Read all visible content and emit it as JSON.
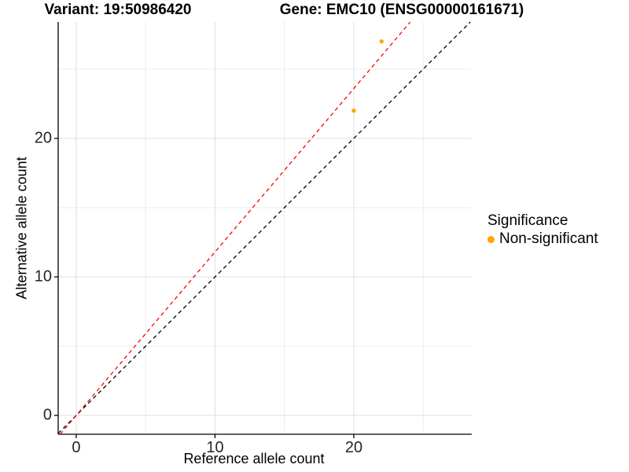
{
  "chart_data": {
    "type": "scatter",
    "title_left": "Variant: 19:50986420",
    "title_right": "Gene: EMC10 (ENSG00000161671)",
    "xlabel": "Reference allele count",
    "ylabel": "Alternative allele count",
    "xlim": [
      -1.3,
      28.5
    ],
    "ylim": [
      -1.36,
      28.4
    ],
    "x_ticks": [
      0,
      10,
      20
    ],
    "y_ticks": [
      0,
      10,
      20
    ],
    "x_minor_gridlines": [
      5,
      15,
      25
    ],
    "y_minor_gridlines": [
      5,
      15,
      25
    ],
    "grid": "major and minor light-gray gridlines on white panel, black left and bottom axis lines",
    "series": [
      {
        "name": "Non-significant",
        "color": "#FFA500",
        "points": [
          {
            "x": 20,
            "y": 22
          },
          {
            "x": 22,
            "y": 27
          }
        ]
      }
    ],
    "lines": [
      {
        "name": "identity-line",
        "slope": 1,
        "intercept": 0,
        "color": "#000000",
        "style": "dashed"
      },
      {
        "name": "fitted-ratio-line",
        "slope": 1.18,
        "intercept": 0,
        "color": "#FF0000",
        "style": "dashed"
      }
    ],
    "legend": {
      "title": "Significance",
      "position": "right",
      "items": [
        {
          "label": "Non-significant",
          "color": "#FFA500"
        }
      ]
    }
  },
  "colors": {
    "point_orange": "#FFA500",
    "fit_line_red": "#FF0000",
    "identity_line_black": "#000000",
    "grid_major": "#dedede",
    "grid_minor": "#ececec",
    "axis_line": "#000000",
    "tick_text": "#262626",
    "background": "#ffffff"
  }
}
